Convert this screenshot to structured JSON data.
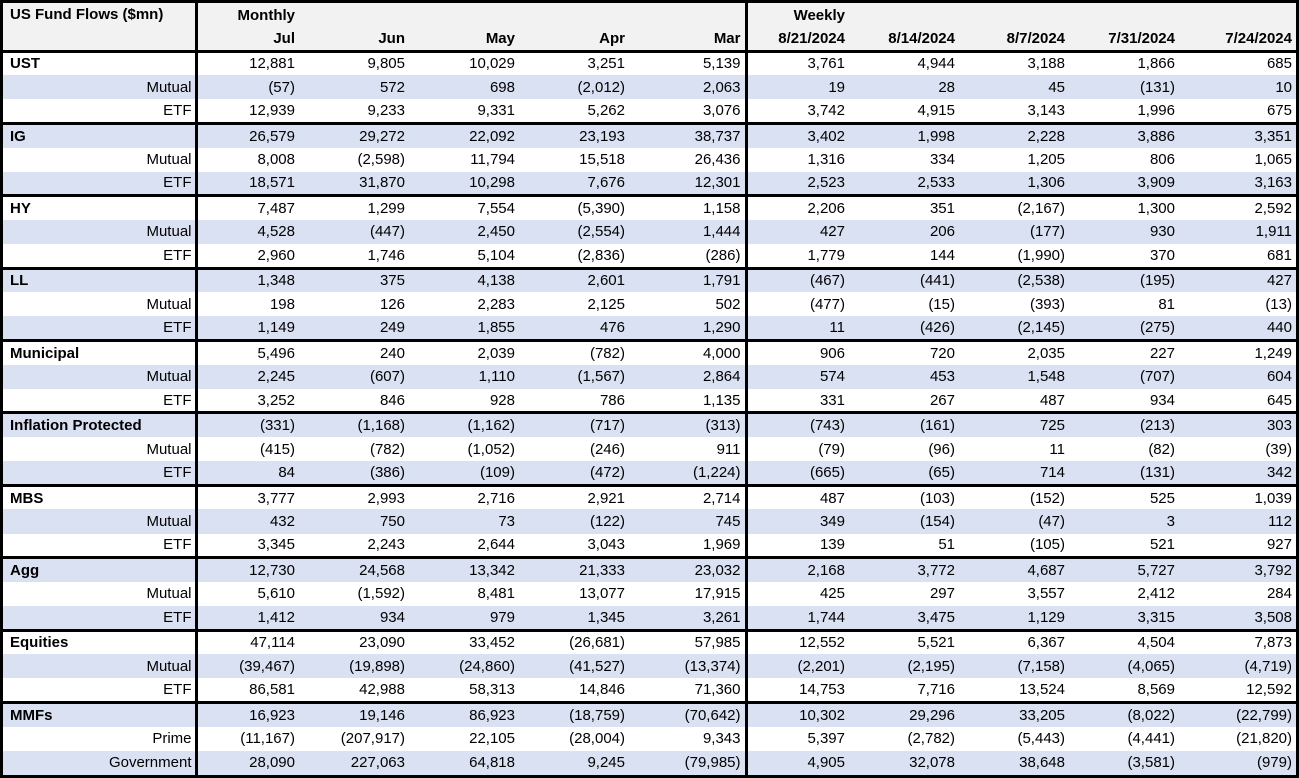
{
  "chart_data": {
    "type": "table",
    "title": "US Fund Flows ($mn)",
    "section_headers": {
      "monthly": "Monthly",
      "weekly": "Weekly"
    },
    "columns": [
      "Jul",
      "Jun",
      "May",
      "Apr",
      "Mar",
      "8/21/2024",
      "8/14/2024",
      "8/7/2024",
      "7/31/2024",
      "7/24/2024"
    ],
    "colors": {
      "row_shade": "#d9e1f2",
      "header_bg": "#f2f2f2",
      "border": "#000000",
      "text": "#000000"
    },
    "rows": [
      {
        "label": "UST",
        "level": "category",
        "values": [
          "12,881",
          "9,805",
          "10,029",
          "3,251",
          "5,139",
          "3,761",
          "4,944",
          "3,188",
          "1,866",
          "685"
        ]
      },
      {
        "label": "Mutual",
        "level": "sub",
        "values": [
          "(57)",
          "572",
          "698",
          "(2,012)",
          "2,063",
          "19",
          "28",
          "45",
          "(131)",
          "10"
        ]
      },
      {
        "label": "ETF",
        "level": "sub",
        "values": [
          "12,939",
          "9,233",
          "9,331",
          "5,262",
          "3,076",
          "3,742",
          "4,915",
          "3,143",
          "1,996",
          "675"
        ]
      },
      {
        "label": "IG",
        "level": "category",
        "values": [
          "26,579",
          "29,272",
          "22,092",
          "23,193",
          "38,737",
          "3,402",
          "1,998",
          "2,228",
          "3,886",
          "3,351"
        ]
      },
      {
        "label": "Mutual",
        "level": "sub",
        "values": [
          "8,008",
          "(2,598)",
          "11,794",
          "15,518",
          "26,436",
          "1,316",
          "334",
          "1,205",
          "806",
          "1,065"
        ]
      },
      {
        "label": "ETF",
        "level": "sub",
        "values": [
          "18,571",
          "31,870",
          "10,298",
          "7,676",
          "12,301",
          "2,523",
          "2,533",
          "1,306",
          "3,909",
          "3,163"
        ]
      },
      {
        "label": "HY",
        "level": "category",
        "values": [
          "7,487",
          "1,299",
          "7,554",
          "(5,390)",
          "1,158",
          "2,206",
          "351",
          "(2,167)",
          "1,300",
          "2,592"
        ]
      },
      {
        "label": "Mutual",
        "level": "sub",
        "values": [
          "4,528",
          "(447)",
          "2,450",
          "(2,554)",
          "1,444",
          "427",
          "206",
          "(177)",
          "930",
          "1,911"
        ]
      },
      {
        "label": "ETF",
        "level": "sub",
        "values": [
          "2,960",
          "1,746",
          "5,104",
          "(2,836)",
          "(286)",
          "1,779",
          "144",
          "(1,990)",
          "370",
          "681"
        ]
      },
      {
        "label": "LL",
        "level": "category",
        "values": [
          "1,348",
          "375",
          "4,138",
          "2,601",
          "1,791",
          "(467)",
          "(441)",
          "(2,538)",
          "(195)",
          "427"
        ]
      },
      {
        "label": "Mutual",
        "level": "sub",
        "values": [
          "198",
          "126",
          "2,283",
          "2,125",
          "502",
          "(477)",
          "(15)",
          "(393)",
          "81",
          "(13)"
        ]
      },
      {
        "label": "ETF",
        "level": "sub",
        "values": [
          "1,149",
          "249",
          "1,855",
          "476",
          "1,290",
          "11",
          "(426)",
          "(2,145)",
          "(275)",
          "440"
        ]
      },
      {
        "label": "Municipal",
        "level": "category",
        "values": [
          "5,496",
          "240",
          "2,039",
          "(782)",
          "4,000",
          "906",
          "720",
          "2,035",
          "227",
          "1,249"
        ]
      },
      {
        "label": "Mutual",
        "level": "sub",
        "values": [
          "2,245",
          "(607)",
          "1,110",
          "(1,567)",
          "2,864",
          "574",
          "453",
          "1,548",
          "(707)",
          "604"
        ]
      },
      {
        "label": "ETF",
        "level": "sub",
        "values": [
          "3,252",
          "846",
          "928",
          "786",
          "1,135",
          "331",
          "267",
          "487",
          "934",
          "645"
        ]
      },
      {
        "label": "Inflation Protected",
        "level": "category",
        "values": [
          "(331)",
          "(1,168)",
          "(1,162)",
          "(717)",
          "(313)",
          "(743)",
          "(161)",
          "725",
          "(213)",
          "303"
        ]
      },
      {
        "label": "Mutual",
        "level": "sub",
        "values": [
          "(415)",
          "(782)",
          "(1,052)",
          "(246)",
          "911",
          "(79)",
          "(96)",
          "11",
          "(82)",
          "(39)"
        ]
      },
      {
        "label": "ETF",
        "level": "sub",
        "values": [
          "84",
          "(386)",
          "(109)",
          "(472)",
          "(1,224)",
          "(665)",
          "(65)",
          "714",
          "(131)",
          "342"
        ]
      },
      {
        "label": "MBS",
        "level": "category",
        "values": [
          "3,777",
          "2,993",
          "2,716",
          "2,921",
          "2,714",
          "487",
          "(103)",
          "(152)",
          "525",
          "1,039"
        ]
      },
      {
        "label": "Mutual",
        "level": "sub",
        "values": [
          "432",
          "750",
          "73",
          "(122)",
          "745",
          "349",
          "(154)",
          "(47)",
          "3",
          "112"
        ]
      },
      {
        "label": "ETF",
        "level": "sub",
        "values": [
          "3,345",
          "2,243",
          "2,644",
          "3,043",
          "1,969",
          "139",
          "51",
          "(105)",
          "521",
          "927"
        ]
      },
      {
        "label": "Agg",
        "level": "category",
        "values": [
          "12,730",
          "24,568",
          "13,342",
          "21,333",
          "23,032",
          "2,168",
          "3,772",
          "4,687",
          "5,727",
          "3,792"
        ]
      },
      {
        "label": "Mutual",
        "level": "sub",
        "values": [
          "5,610",
          "(1,592)",
          "8,481",
          "13,077",
          "17,915",
          "425",
          "297",
          "3,557",
          "2,412",
          "284"
        ]
      },
      {
        "label": "ETF",
        "level": "sub",
        "values": [
          "1,412",
          "934",
          "979",
          "1,345",
          "3,261",
          "1,744",
          "3,475",
          "1,129",
          "3,315",
          "3,508"
        ]
      },
      {
        "label": "Equities",
        "level": "category",
        "values": [
          "47,114",
          "23,090",
          "33,452",
          "(26,681)",
          "57,985",
          "12,552",
          "5,521",
          "6,367",
          "4,504",
          "7,873"
        ]
      },
      {
        "label": "Mutual",
        "level": "sub",
        "values": [
          "(39,467)",
          "(19,898)",
          "(24,860)",
          "(41,527)",
          "(13,374)",
          "(2,201)",
          "(2,195)",
          "(7,158)",
          "(4,065)",
          "(4,719)"
        ]
      },
      {
        "label": "ETF",
        "level": "sub",
        "values": [
          "86,581",
          "42,988",
          "58,313",
          "14,846",
          "71,360",
          "14,753",
          "7,716",
          "13,524",
          "8,569",
          "12,592"
        ]
      },
      {
        "label": "MMFs",
        "level": "category",
        "values": [
          "16,923",
          "19,146",
          "86,923",
          "(18,759)",
          "(70,642)",
          "10,302",
          "29,296",
          "33,205",
          "(8,022)",
          "(22,799)"
        ]
      },
      {
        "label": "Prime",
        "level": "sub",
        "values": [
          "(11,167)",
          "(207,917)",
          "22,105",
          "(28,004)",
          "9,343",
          "5,397",
          "(2,782)",
          "(5,443)",
          "(4,441)",
          "(21,820)"
        ]
      },
      {
        "label": "Government",
        "level": "sub",
        "values": [
          "28,090",
          "227,063",
          "64,818",
          "9,245",
          "(79,985)",
          "4,905",
          "32,078",
          "38,648",
          "(3,581)",
          "(979)"
        ]
      }
    ]
  }
}
